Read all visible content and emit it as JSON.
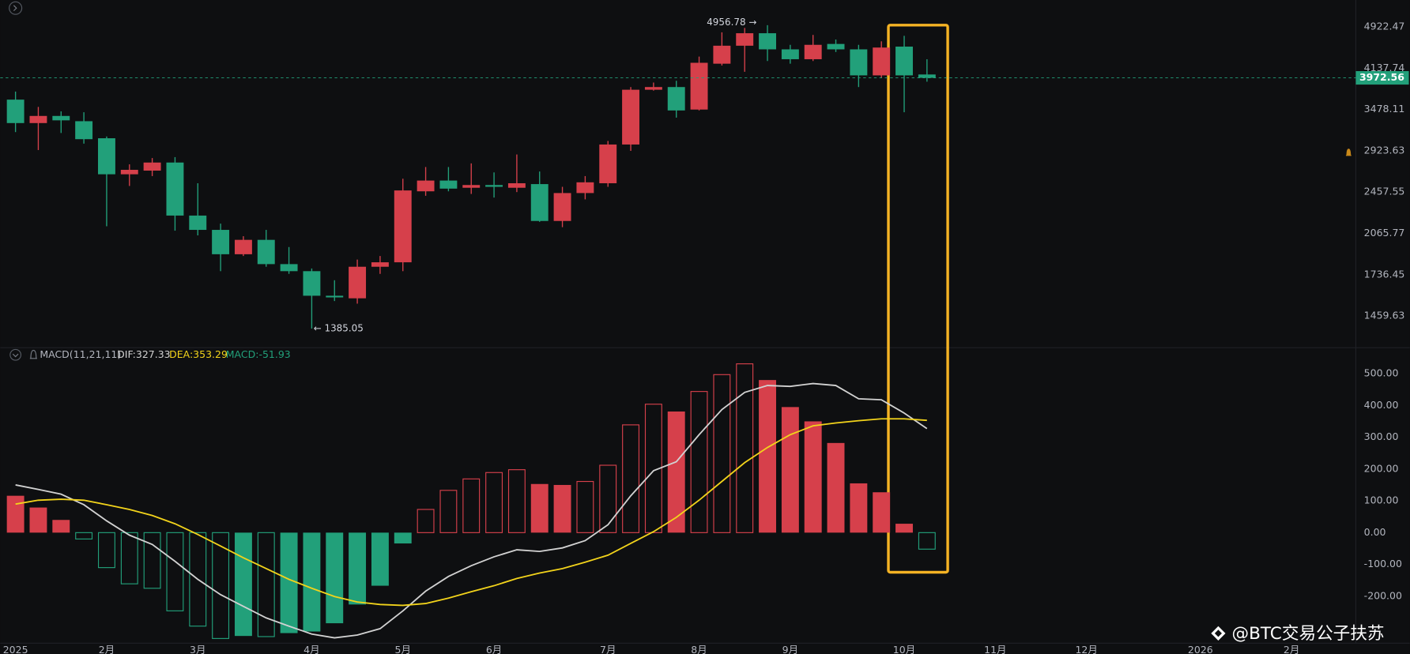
{
  "chart_data": [
    {
      "type": "candlestick",
      "open": [
        3625,
        3285,
        3385,
        3311,
        3082,
        2649,
        2690,
        2783,
        2227,
        2097,
        1893,
        2011,
        1816,
        1763,
        1590,
        1573,
        1796,
        1830,
        2466,
        2580,
        2503,
        2532,
        2503,
        2542,
        2177,
        2448,
        2551,
        3002,
        3779,
        3822,
        3477,
        4216,
        4547,
        4792,
        4478,
        4296,
        4581,
        4478,
        4014,
        4530,
        4029
      ],
      "high": [
        3750,
        3516,
        3451,
        3438,
        3105,
        2762,
        2836,
        2847,
        2551,
        2153,
        2042,
        2097,
        1951,
        1783,
        1697,
        1851,
        1879,
        2600,
        2731,
        2731,
        2773,
        2670,
        2879,
        2680,
        2513,
        2629,
        3047,
        3822,
        3895,
        3924,
        4344,
        4810,
        4900,
        4956.78,
        4564,
        4758,
        4667,
        4564,
        4632,
        4740,
        4296
      ],
      "low": [
        3163,
        2933,
        3151,
        3013,
        2129,
        2522,
        2629,
        2090,
        2049,
        1763,
        1879,
        1796,
        1743,
        1385.05,
        1555,
        1538,
        1743,
        1763,
        2420,
        2466,
        2439,
        2402,
        2458,
        2169,
        2121,
        2384,
        2513,
        2923,
        3765,
        3361,
        3464,
        4184,
        4075,
        4264,
        4216,
        4264,
        4428,
        3822,
        3969,
        3438,
        3909
      ],
      "close": [
        3285,
        3385,
        3323,
        3070,
        2649,
        2699,
        2783,
        2227,
        2097,
        1893,
        2011,
        1816,
        1763,
        1590,
        1579,
        1796,
        1830,
        2475,
        2580,
        2494,
        2532,
        2513,
        2551,
        2177,
        2448,
        2561,
        3002,
        3779,
        3822,
        3464,
        4232,
        4547,
        4792,
        4478,
        4296,
        4564,
        4478,
        4014,
        4512,
        4014,
        3972.56
      ],
      "up_color": "#d6404b",
      "down_color": "#22a07a",
      "ylim": [
        1288,
        5510
      ],
      "log_scale": true,
      "yticks": [
        4922.47,
        4137.74,
        3478.11,
        2923.63,
        2457.55,
        2065.77,
        1736.45,
        1459.63
      ],
      "xlim": [
        -0.67,
        58.82
      ],
      "last_price": 3972.56,
      "max_label": "4956.78 →",
      "min_label": "← 1385.05",
      "grid": false
    },
    {
      "type": "macd",
      "title": "MACD(11,21,11)",
      "histogram": {
        "name": "MACD:-51.93",
        "up_color": "#d6404b",
        "down_color": "#22a07a",
        "values": [
          116,
          79,
          40,
          -20,
          -110,
          -161,
          -175,
          -246,
          -294,
          -333,
          -325,
          -327,
          -316,
          -311,
          -285,
          -226,
          -167,
          -34,
          73,
          133,
          169,
          189,
          198,
          153,
          150,
          161,
          212,
          339,
          404,
          381,
          444,
          497,
          531,
          480,
          395,
          350,
          282,
          155,
          127,
          28,
          -51.93
        ]
      },
      "series": [
        {
          "name": "DIF:327.33",
          "color": "#d2d2d2",
          "values": [
            150,
            136,
            121,
            88,
            37,
            -8,
            -37,
            -90,
            -147,
            -195,
            -232,
            -268,
            -294,
            -319,
            -331,
            -322,
            -302,
            -246,
            -184,
            -138,
            -104,
            -76,
            -54,
            -59,
            -48,
            -25,
            25,
            116,
            195,
            223,
            308,
            387,
            441,
            463,
            460,
            469,
            463,
            421,
            418,
            376,
            327.33
          ]
        },
        {
          "name": "DEA:353.29",
          "color": "#f2d31b",
          "values": [
            90,
            102,
            105,
            102,
            88,
            73,
            54,
            28,
            -6,
            -42,
            -79,
            -113,
            -147,
            -175,
            -201,
            -218,
            -226,
            -229,
            -223,
            -206,
            -186,
            -167,
            -144,
            -127,
            -113,
            -93,
            -71,
            -34,
            3,
            48,
            102,
            161,
            220,
            268,
            308,
            336,
            345,
            352,
            358,
            358,
            353.29
          ]
        }
      ],
      "ylim": [
        -345,
        579
      ],
      "yticks": [
        {
          "value": 500,
          "label": "500.00"
        },
        {
          "value": 400,
          "label": "400.00"
        },
        {
          "value": 300,
          "label": "300.00"
        },
        {
          "value": 200,
          "label": "200.00"
        },
        {
          "value": 100,
          "label": "100.00"
        },
        {
          "value": 0,
          "label": "0.00"
        },
        {
          "value": -100,
          "label": "-100.00"
        },
        {
          "value": -200,
          "label": "-200.00"
        }
      ],
      "xlim": [
        -0.67,
        58.82
      ],
      "xticks": [
        {
          "value": 0,
          "label": "2025"
        },
        {
          "value": 4,
          "label": "2月"
        },
        {
          "value": 8,
          "label": "3月"
        },
        {
          "value": 13,
          "label": "4月"
        },
        {
          "value": 17,
          "label": "5月"
        },
        {
          "value": 21,
          "label": "6月"
        },
        {
          "value": 26,
          "label": "7月"
        },
        {
          "value": 30,
          "label": "8月"
        },
        {
          "value": 34,
          "label": "9月"
        },
        {
          "value": 39,
          "label": "10月"
        },
        {
          "value": 43,
          "label": "11月"
        },
        {
          "value": 47,
          "label": "12月"
        },
        {
          "value": 52,
          "label": "2026"
        },
        {
          "value": 56,
          "label": "2月"
        }
      ]
    }
  ],
  "watermark": "@BTC交易公子扶苏"
}
